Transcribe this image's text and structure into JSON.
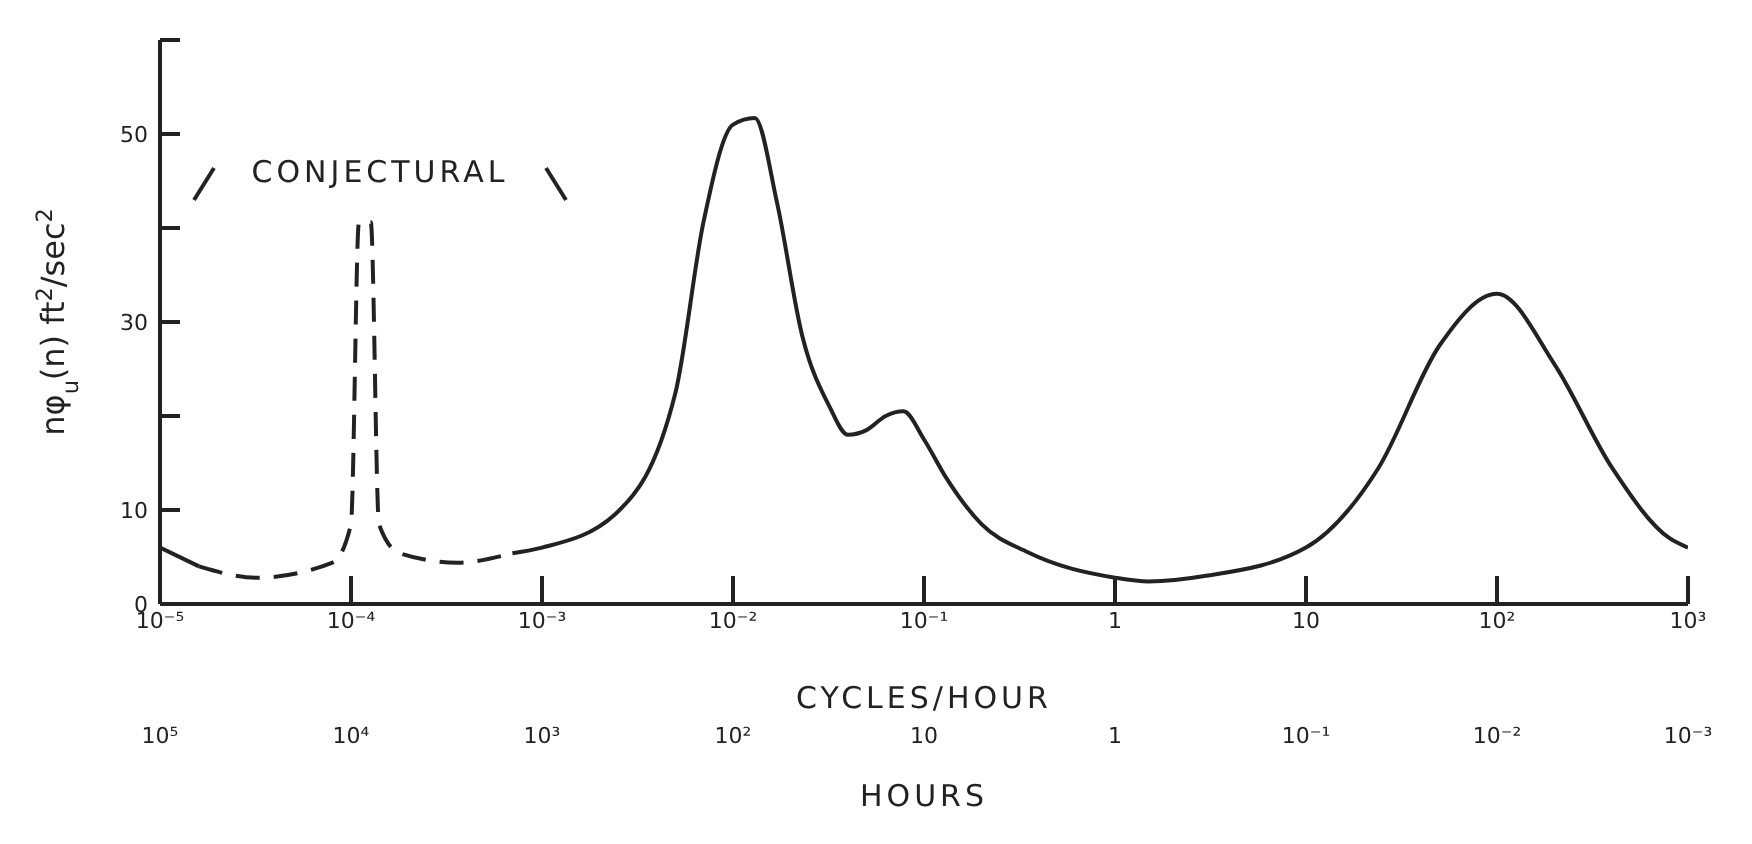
{
  "chart_data": {
    "type": "line",
    "xlabel": "CYCLES/HOUR",
    "ylabel": "nφ$_{u}$(n)  ft$^{2}$/sec$^{2}$",
    "log": "x",
    "marker": "none",
    "xlim": [
      1e-05,
      1000
    ],
    "xticks": [
      {
        "value": 1e-05,
        "label": "10⁻⁵"
      },
      {
        "value": 0.0001,
        "label": "10⁻⁴"
      },
      {
        "value": 0.001,
        "label": "10⁻³"
      },
      {
        "value": 0.01,
        "label": "10⁻²"
      },
      {
        "value": 0.1,
        "label": "10⁻¹"
      },
      1,
      10,
      {
        "value": 100,
        "label": "10²"
      },
      {
        "value": 1000,
        "label": "10³"
      }
    ],
    "ylim": [
      0,
      60
    ],
    "yticks": [
      0,
      10,
      {
        "value": 20,
        "label": null
      },
      30,
      {
        "value": 40,
        "label": null
      },
      50,
      {
        "value": 60,
        "label": null
      }
    ],
    "annotations": [
      "CONJECTURAL",
      "10⁵",
      "10⁴",
      "10³",
      "10²",
      "10",
      "1",
      "10⁻¹",
      "10⁻²",
      "10⁻³",
      "HOURS"
    ],
    "series": [
      {
        "color": "#222222",
        "line_style": "solid",
        "x": [
          1e-05,
          1.6e-05
        ],
        "values": [
          6,
          4
        ]
      },
      {
        "color": "#222222",
        "line_style": "dashed",
        "x": [
          1.6e-05,
          3.2e-05,
          8e-05,
          0.0001,
          0.00011,
          0.000127,
          0.00014,
          0.00018,
          0.00036,
          0.0007
        ],
        "values": [
          4,
          2.8,
          4.4,
          8.5,
          40.6,
          40.6,
          8.5,
          5.4,
          4.4,
          5.4
        ]
      },
      {
        "color": "#222222",
        "line_style": "solid",
        "x": [
          0.0007,
          0.001,
          0.0024,
          0.005,
          0.007,
          0.01,
          0.013,
          0.017,
          0.023,
          0.032,
          0.04,
          0.05,
          0.063,
          0.078,
          0.1,
          0.13,
          0.2,
          0.35,
          1,
          1.5,
          3,
          10,
          24,
          50,
          100,
          200,
          400,
          800,
          1000
        ],
        "values": [
          5.4,
          6,
          9.5,
          22.5,
          40.6,
          51,
          51.7,
          42.7,
          28.6,
          21,
          18,
          18.5,
          20,
          20.5,
          17.5,
          13.5,
          8.5,
          5.5,
          2.8,
          2.4,
          3,
          6,
          14.5,
          27.5,
          33,
          25.5,
          14.5,
          7,
          6
        ]
      }
    ]
  }
}
